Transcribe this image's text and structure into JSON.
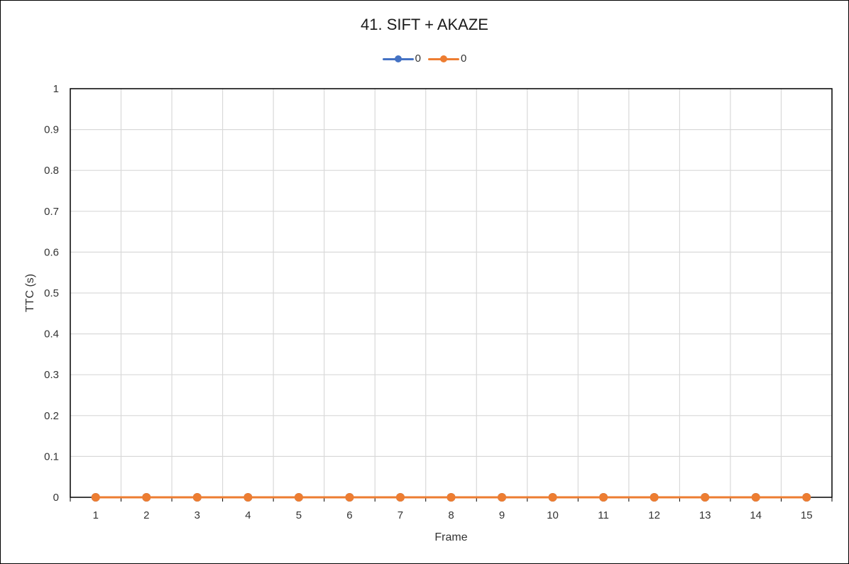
{
  "chart_data": {
    "type": "line",
    "title": "41. SIFT + AKAZE",
    "xlabel": "Frame",
    "ylabel": "TTC (s)",
    "categories": [
      "1",
      "2",
      "3",
      "4",
      "5",
      "6",
      "7",
      "8",
      "9",
      "10",
      "11",
      "12",
      "13",
      "14",
      "15"
    ],
    "ylim": [
      0,
      1
    ],
    "yticks": [
      "0",
      "0.1",
      "0.2",
      "0.3",
      "0.4",
      "0.5",
      "0.6",
      "0.7",
      "0.8",
      "0.9",
      "1"
    ],
    "grid": true,
    "legend_position": "top",
    "series": [
      {
        "name": "0",
        "color": "#4472C4",
        "values": [
          0,
          0,
          0,
          0,
          0,
          0,
          0,
          0,
          0,
          0,
          0,
          0,
          0,
          0,
          0
        ]
      },
      {
        "name": "0",
        "color": "#ED7D31",
        "values": [
          0,
          0,
          0,
          0,
          0,
          0,
          0,
          0,
          0,
          0,
          0,
          0,
          0,
          0,
          0
        ]
      }
    ]
  }
}
